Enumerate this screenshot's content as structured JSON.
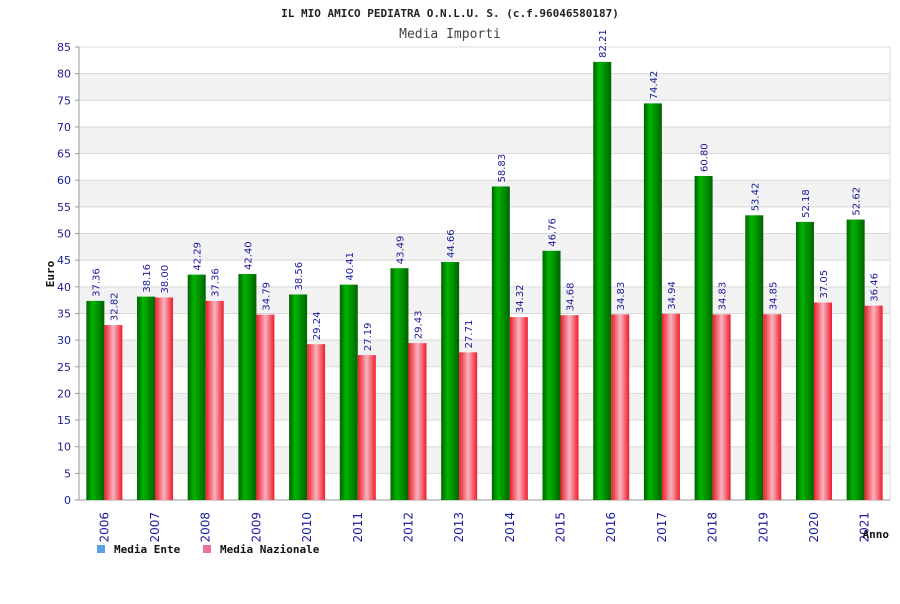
{
  "colors": {
    "ente_bar": "#00b400",
    "ente_bar_dark": "#006400",
    "nazionale_bar": "#ee1c2a",
    "nazionale_bar_light": "#f7b4bf",
    "legend_ente": "#5aa0e6",
    "legend_nazionale": "#e9739b",
    "band": "#f2f2f2",
    "grid": "#d9d9d9",
    "tick_text": "#1a1a9a"
  },
  "chart_data": {
    "type": "bar",
    "title": "IL MIO AMICO PEDIATRA O.N.L.U. S. (c.f.96046580187)",
    "subtitle": "Media Importi",
    "xlabel": "Anno",
    "ylabel": "Euro",
    "ylim": [
      0,
      85
    ],
    "ytick_step": 5,
    "grid": true,
    "legend_position": "bottom-left",
    "categories": [
      "2006",
      "2007",
      "2008",
      "2009",
      "2010",
      "2011",
      "2012",
      "2013",
      "2014",
      "2015",
      "2016",
      "2017",
      "2018",
      "2019",
      "2020",
      "2021"
    ],
    "series": [
      {
        "name": "Media Ente",
        "values": [
          37.36,
          38.16,
          42.29,
          42.4,
          38.56,
          40.41,
          43.49,
          44.66,
          58.83,
          46.76,
          82.21,
          74.42,
          60.8,
          53.42,
          52.18,
          52.62
        ],
        "labels": [
          "37.36",
          "38.16",
          "42.29",
          "42.40",
          "38.56",
          "40.41",
          "43.49",
          "44.66",
          "58.83",
          "46.76",
          "82.21",
          "74.42",
          "60.80",
          "53.42",
          "52.18",
          "52.62"
        ]
      },
      {
        "name": "Media Nazionale",
        "values": [
          32.82,
          38.0,
          37.36,
          34.79,
          29.24,
          27.19,
          29.43,
          27.71,
          34.32,
          34.68,
          34.83,
          34.94,
          34.83,
          34.85,
          37.05,
          36.46
        ],
        "labels": [
          "32.82",
          "38.00",
          "37.36",
          "34.79",
          "29.24",
          "27.19",
          "29.43",
          "27.71",
          "34.32",
          "34.68",
          "34.83",
          "34.94",
          "34.83",
          "34.85",
          "37.05",
          "36.46"
        ]
      }
    ]
  }
}
